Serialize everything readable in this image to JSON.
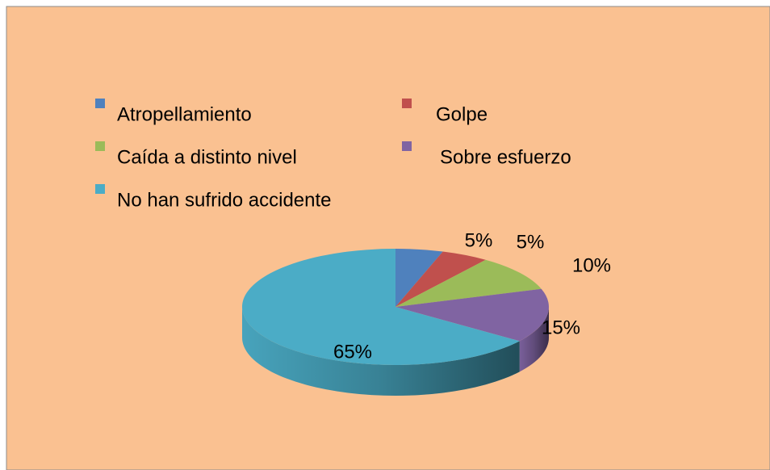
{
  "chart_data": {
    "type": "pie",
    "categories": [
      "Atropellamiento",
      "Golpe",
      "Caída a distinto nivel",
      "Sobre esfuerzo",
      "No han sufrido accidente"
    ],
    "values": [
      5,
      5,
      10,
      15,
      65
    ],
    "value_labels": [
      "5%",
      "5%",
      "10%",
      "15%",
      "65%"
    ],
    "colors": [
      "#4f81bd",
      "#c0504d",
      "#9bbb59",
      "#8064a2",
      "#4bacc6"
    ],
    "legend": "top"
  }
}
